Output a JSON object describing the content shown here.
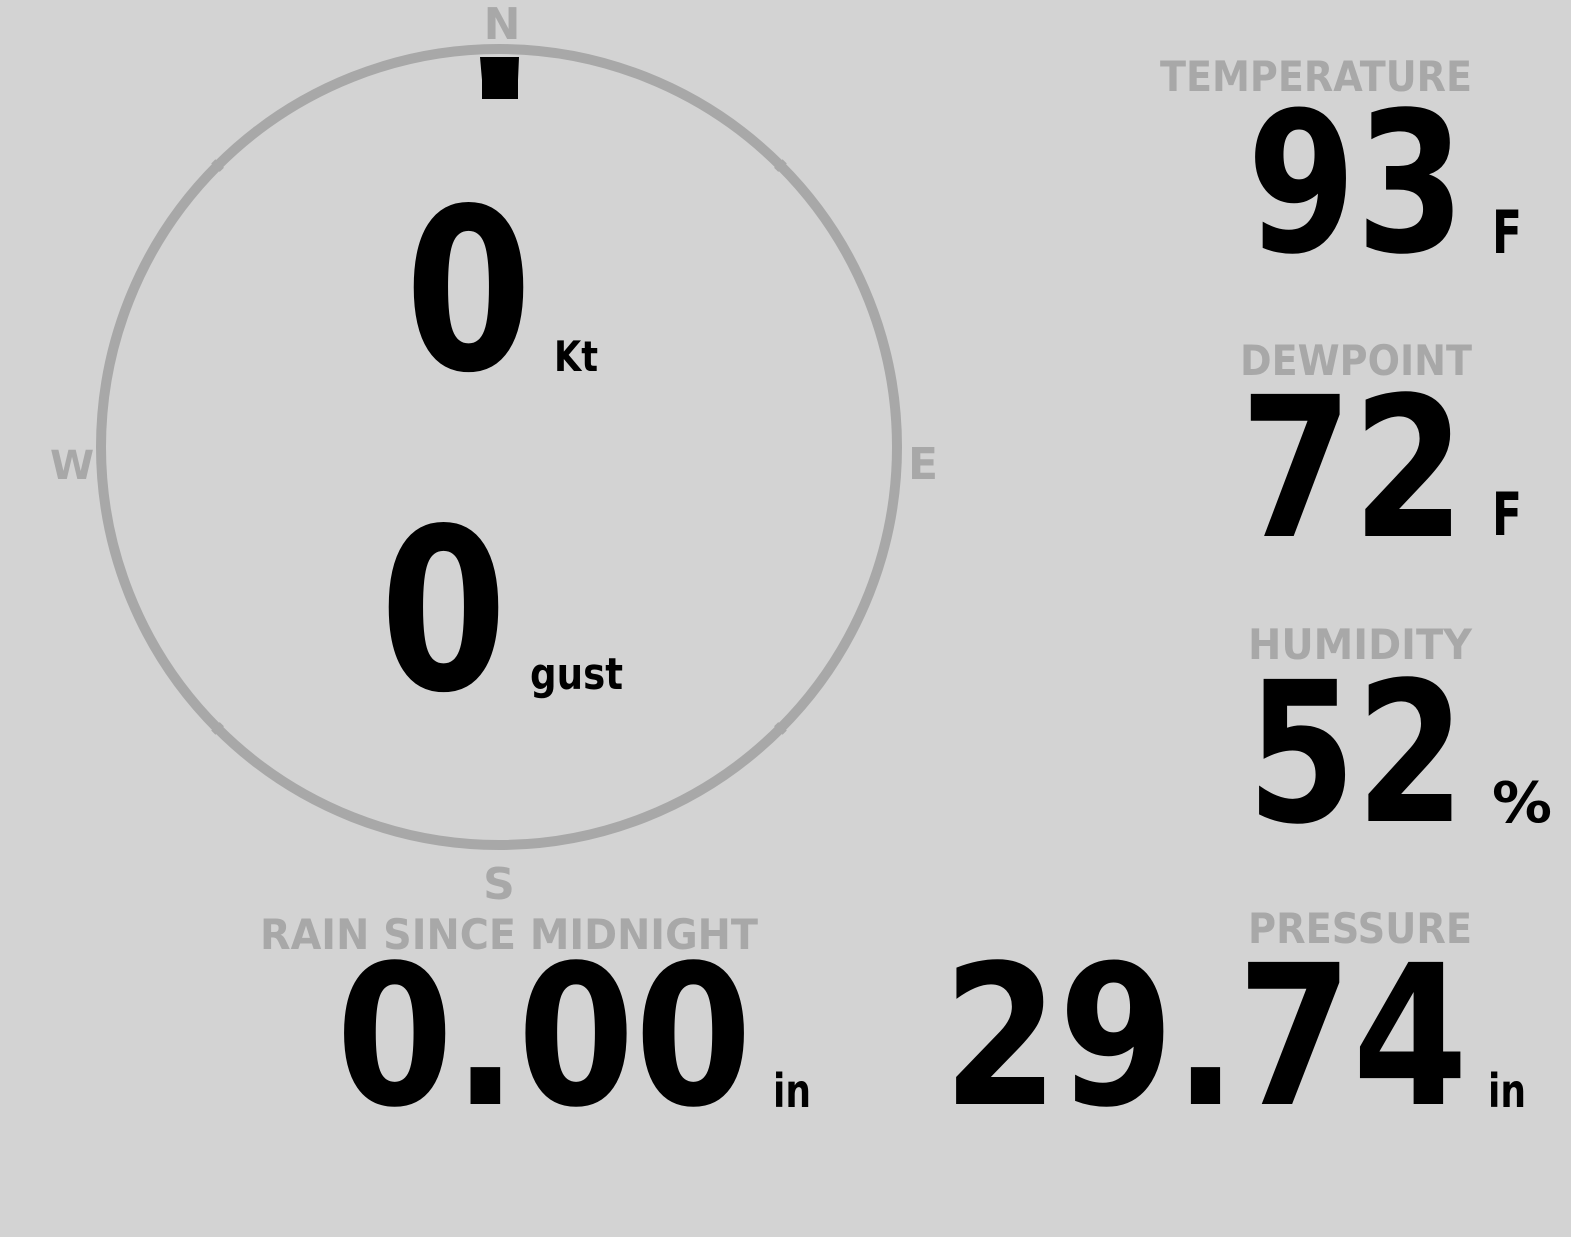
{
  "colors": {
    "background": "#d3d3d3",
    "label": "#a8a8a8",
    "value": "#000000",
    "dial": "#a8a8a8"
  },
  "wind": {
    "compass": {
      "n": "N",
      "e": "E",
      "s": "S",
      "w": "W"
    },
    "direction_deg": 0,
    "speed": "0",
    "speed_unit": "Kt",
    "gust": "0",
    "gust_unit": "gust"
  },
  "temperature": {
    "label": "TEMPERATURE",
    "value": "93",
    "unit": "F"
  },
  "dewpoint": {
    "label": "DEWPOINT",
    "value": "72",
    "unit": "F"
  },
  "humidity": {
    "label": "HUMIDITY",
    "value": "52",
    "unit": "%"
  },
  "pressure": {
    "label": "PRESSURE",
    "value": "29.74",
    "unit": "in"
  },
  "rain": {
    "label": "RAIN SINCE MIDNIGHT",
    "value": "0.00",
    "unit": "in"
  }
}
